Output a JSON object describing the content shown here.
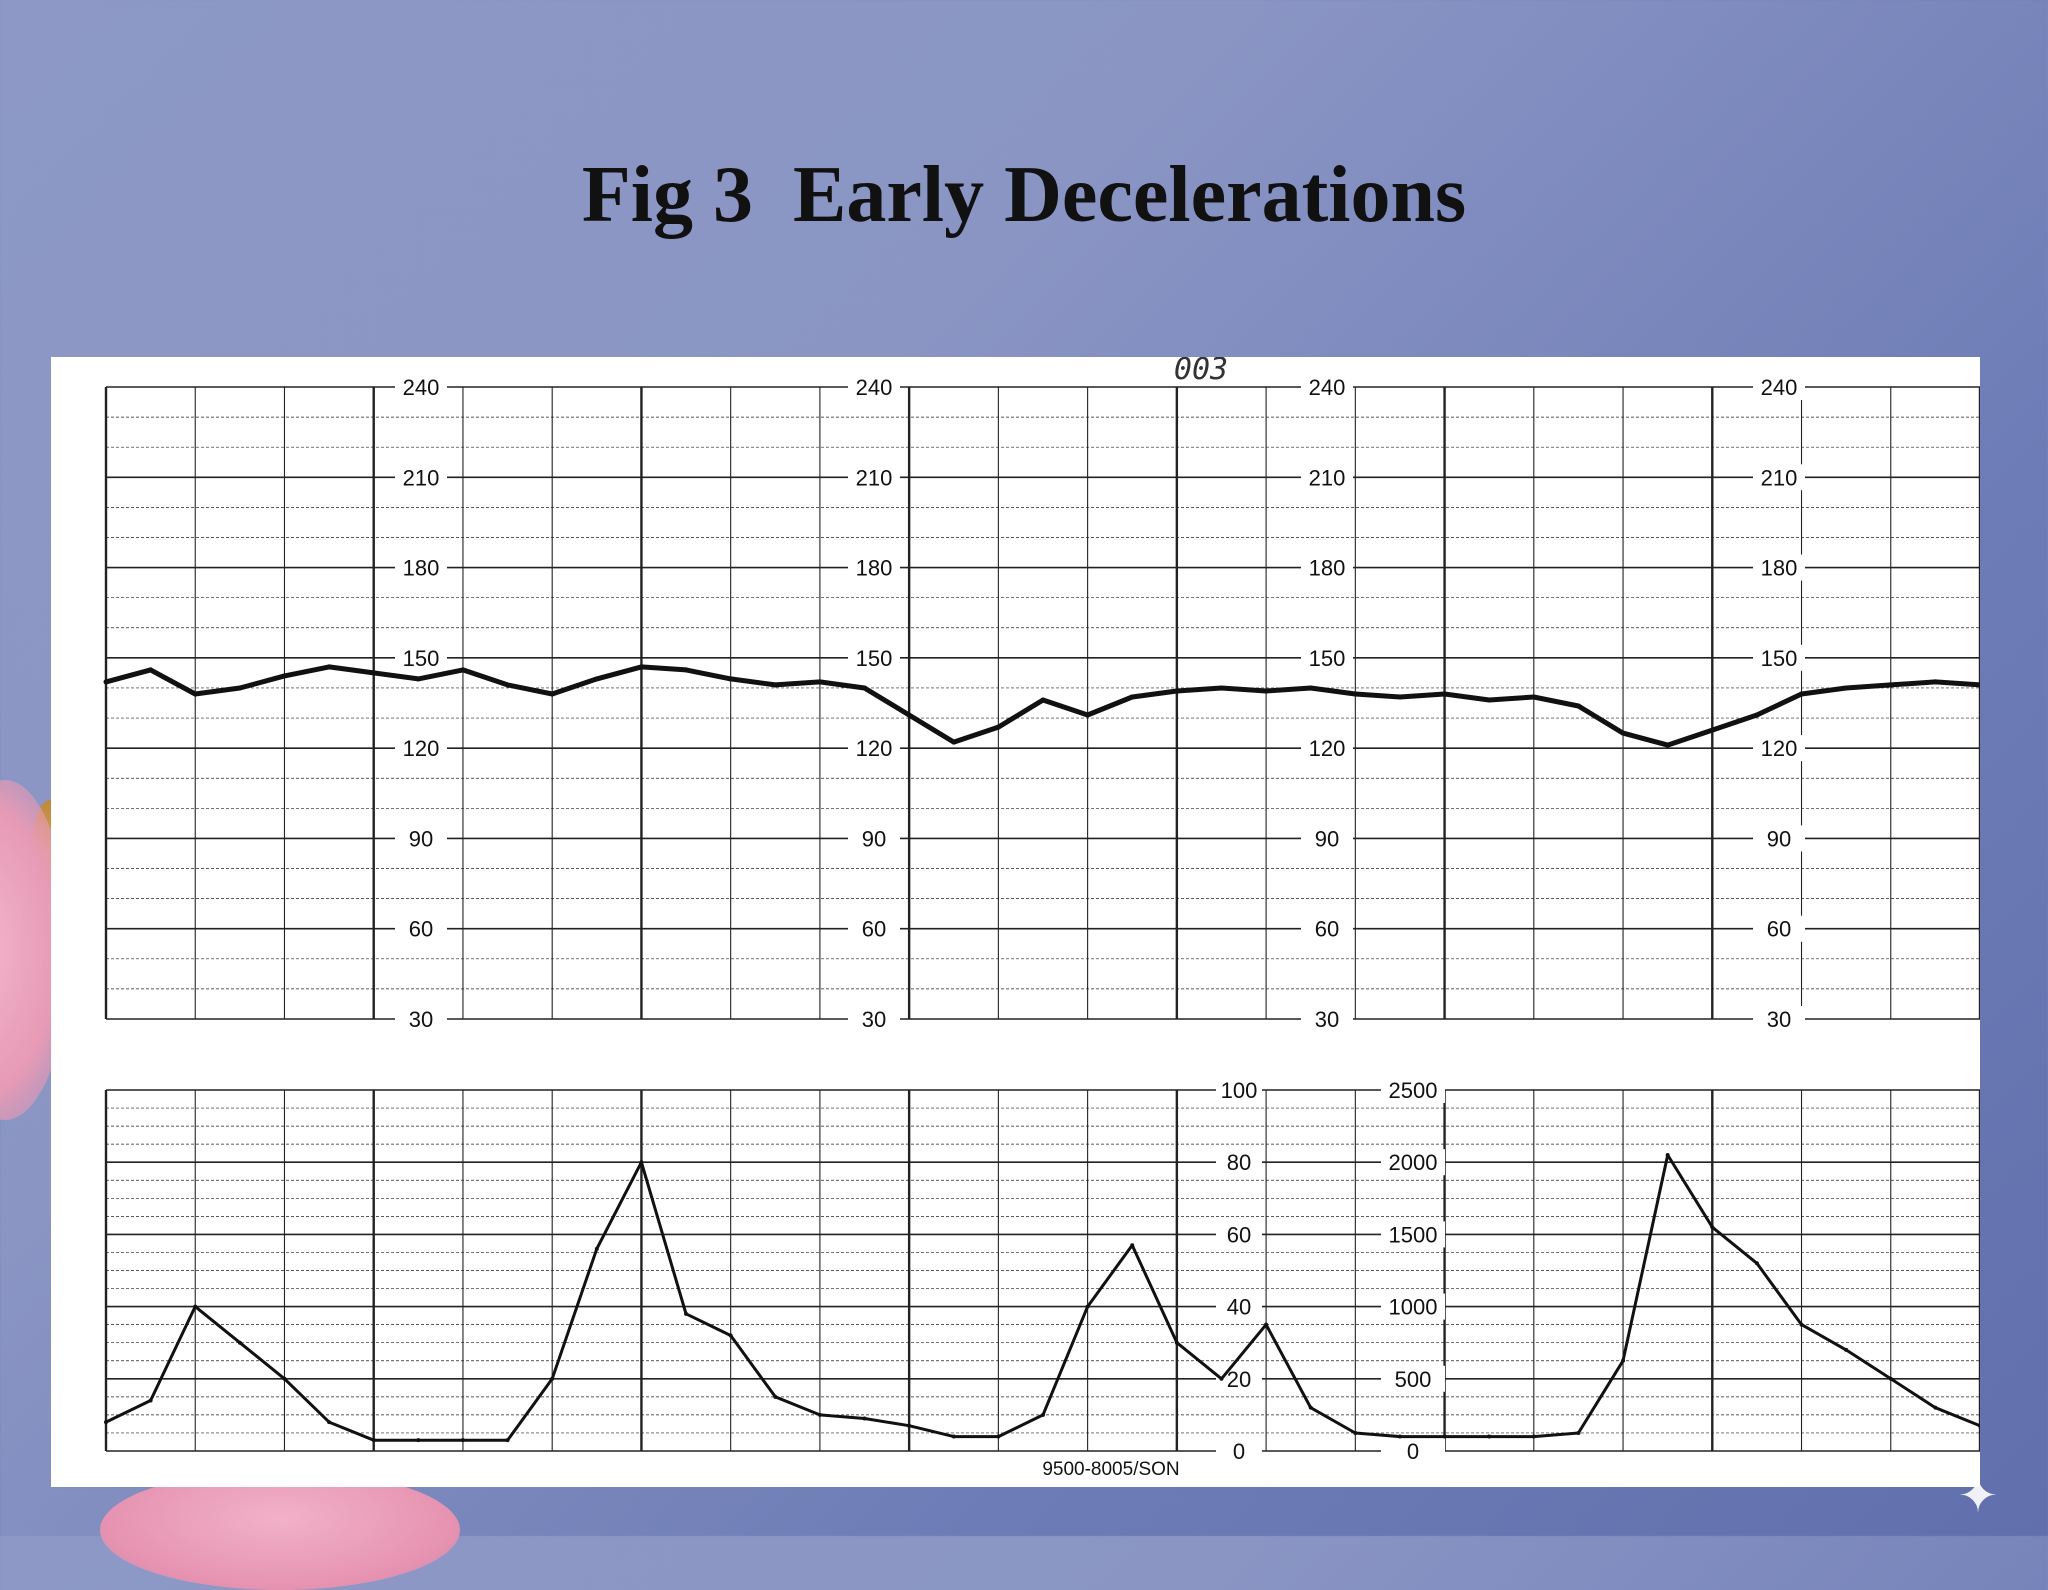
{
  "slide": {
    "title": "Fig 3  Early Decelerations"
  },
  "chart_data": [
    {
      "type": "line",
      "name": "fetal-heart-rate",
      "y_ticks": [
        240,
        210,
        180,
        150,
        120,
        90,
        60,
        30
      ],
      "ylim": [
        30,
        240
      ],
      "tick_columns": 4,
      "x": [
        0,
        5,
        10,
        15,
        20,
        25,
        30,
        35,
        40,
        45,
        50,
        55,
        60,
        65,
        70,
        75,
        80,
        85,
        90,
        95,
        100,
        105,
        110,
        115,
        120,
        125,
        130,
        135,
        140,
        145,
        150,
        155,
        160,
        165,
        170,
        175,
        180,
        185,
        190,
        195,
        200,
        205,
        210
      ],
      "values": [
        142,
        146,
        138,
        140,
        144,
        147,
        145,
        143,
        146,
        141,
        138,
        143,
        147,
        146,
        143,
        141,
        142,
        140,
        131,
        122,
        127,
        136,
        131,
        137,
        139,
        140,
        139,
        140,
        138,
        137,
        138,
        136,
        137,
        134,
        125,
        121,
        126,
        131,
        138,
        140,
        141,
        142,
        141
      ],
      "chart_number_mark": "003",
      "grid": true,
      "line_color": "#111111"
    },
    {
      "type": "line",
      "name": "uterine-contractions",
      "y_ticks_left": [
        100,
        80,
        60,
        40,
        20,
        0
      ],
      "y_ticks_right": [
        2500,
        2000,
        1500,
        1000,
        500,
        0
      ],
      "ylim": [
        0,
        100
      ],
      "x": [
        0,
        5,
        10,
        15,
        20,
        25,
        30,
        35,
        40,
        45,
        50,
        55,
        60,
        65,
        70,
        75,
        80,
        85,
        90,
        95,
        100,
        105,
        110,
        115,
        120,
        125,
        130,
        135,
        140,
        145,
        150,
        155,
        160,
        165,
        170,
        175,
        180,
        185,
        190,
        195,
        200,
        205,
        210
      ],
      "values": [
        8,
        14,
        40,
        30,
        20,
        8,
        3,
        3,
        3,
        3,
        20,
        56,
        80,
        38,
        32,
        15,
        10,
        9,
        7,
        4,
        4,
        10,
        40,
        57,
        30,
        20,
        35,
        12,
        5,
        4,
        4,
        4,
        4,
        5,
        25,
        82,
        62,
        52,
        35,
        28,
        20,
        12,
        7
      ],
      "footer_code": "9500-8005/SON",
      "grid": true,
      "line_color": "#111111"
    }
  ]
}
